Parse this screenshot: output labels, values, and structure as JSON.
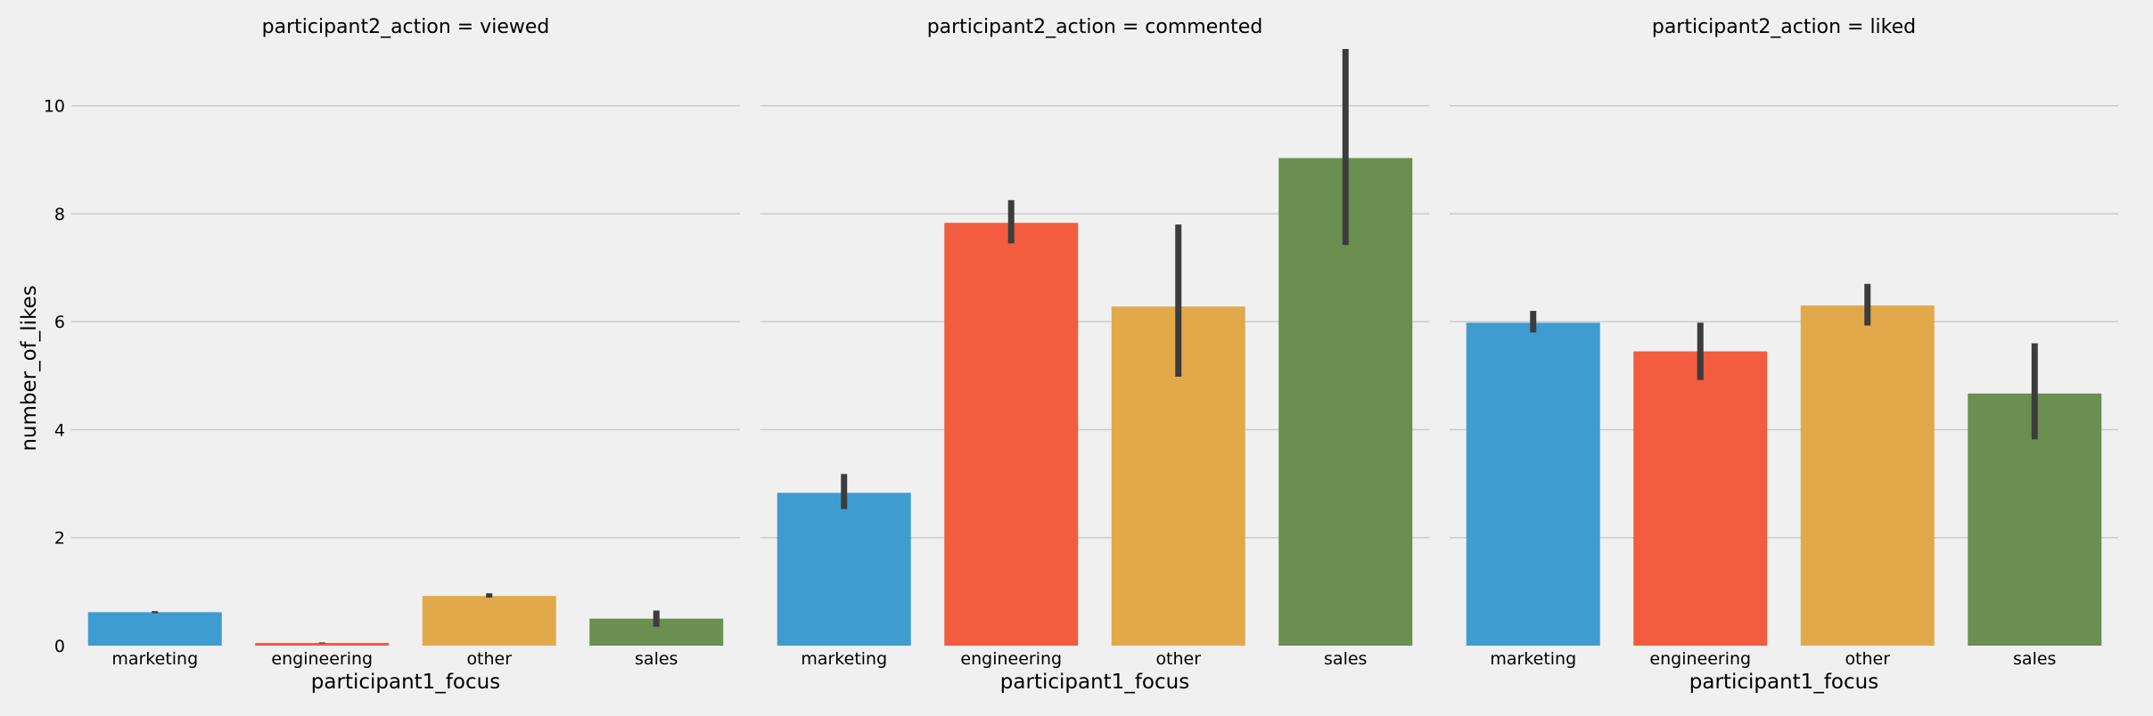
{
  "chart_data": {
    "type": "bar",
    "ylabel": "number_of_likes",
    "ylim": [
      0,
      11.1
    ],
    "yticks": [
      0,
      2,
      4,
      6,
      8,
      10
    ],
    "grid": true,
    "colors": [
      "#3f9cd0",
      "#f25c3f",
      "#e1a94a",
      "#6a8f50"
    ],
    "errorbar_color": "#3c3c3c",
    "background": "#f0f0f0",
    "panels": [
      {
        "title": "participant2_action = viewed",
        "xlabel": "participant1_focus",
        "categories": [
          "marketing",
          "engineering",
          "other",
          "sales"
        ],
        "values": [
          0.62,
          0.05,
          0.92,
          0.5
        ],
        "err_low": [
          0.6,
          0.04,
          0.89,
          0.35
        ],
        "err_high": [
          0.64,
          0.06,
          0.97,
          0.65
        ]
      },
      {
        "title": "participant2_action = commented",
        "xlabel": "participant1_focus",
        "categories": [
          "marketing",
          "engineering",
          "other",
          "sales"
        ],
        "values": [
          2.83,
          7.83,
          6.28,
          9.03
        ],
        "err_low": [
          2.53,
          7.45,
          4.98,
          7.42
        ],
        "err_high": [
          3.18,
          8.25,
          7.8,
          11.05
        ]
      },
      {
        "title": "participant2_action = liked",
        "xlabel": "participant1_focus",
        "categories": [
          "marketing",
          "engineering",
          "other",
          "sales"
        ],
        "values": [
          5.98,
          5.45,
          6.3,
          4.67
        ],
        "err_low": [
          5.8,
          4.92,
          5.93,
          3.82
        ],
        "err_high": [
          6.2,
          5.98,
          6.7,
          5.6
        ]
      }
    ]
  }
}
